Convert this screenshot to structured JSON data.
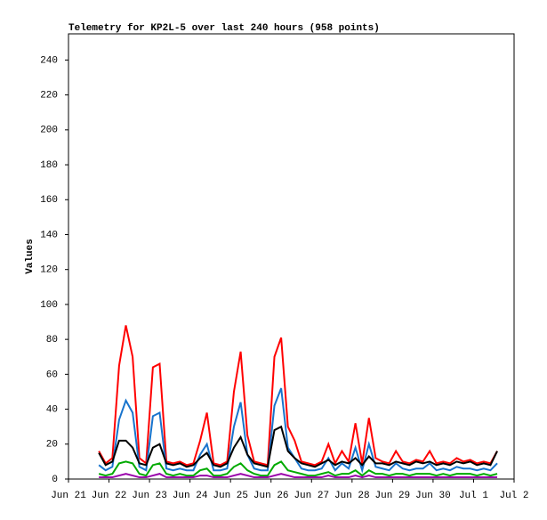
{
  "chart_data": {
    "type": "line",
    "title": "Telemetry for KP2L-5 over last 240 hours (958 points)",
    "ylabel": "Values",
    "x": [
      18,
      22,
      26,
      30,
      34,
      38,
      42,
      46,
      50,
      54,
      58,
      62,
      66,
      70,
      74,
      78,
      82,
      86,
      90,
      94,
      98,
      102,
      106,
      110,
      114,
      118,
      122,
      126,
      130,
      134,
      138,
      142,
      146,
      150,
      154,
      158,
      162,
      166,
      170,
      174,
      178,
      182,
      186,
      190,
      194,
      198,
      202,
      206,
      210,
      214,
      218,
      222,
      226,
      230,
      234,
      238,
      242,
      246,
      250,
      254
    ],
    "series": [
      {
        "color": "#ff0000",
        "values": [
          16,
          9,
          12,
          65,
          88,
          70,
          12,
          9,
          64,
          66,
          10,
          9,
          10,
          8,
          9,
          22,
          38,
          9,
          8,
          10,
          50,
          73,
          25,
          10,
          9,
          8,
          70,
          81,
          30,
          22,
          10,
          9,
          8,
          10,
          20,
          9,
          16,
          10,
          32,
          9,
          35,
          12,
          10,
          9,
          16,
          10,
          9,
          11,
          10,
          16,
          9,
          10,
          9,
          12,
          10,
          11,
          9,
          10,
          9,
          16
        ]
      },
      {
        "color": "#1874cd",
        "values": [
          8,
          5,
          7,
          34,
          45,
          38,
          7,
          5,
          36,
          38,
          6,
          5,
          6,
          5,
          5,
          14,
          20,
          5,
          5,
          6,
          30,
          44,
          14,
          6,
          5,
          5,
          42,
          52,
          18,
          12,
          6,
          5,
          5,
          6,
          12,
          5,
          9,
          6,
          18,
          5,
          20,
          7,
          6,
          5,
          9,
          6,
          5,
          6,
          6,
          9,
          5,
          6,
          5,
          7,
          6,
          6,
          5,
          6,
          5,
          9
        ]
      },
      {
        "color": "#00aa00",
        "values": [
          3,
          2,
          3,
          9,
          10,
          9,
          3,
          2,
          8,
          9,
          3,
          2,
          3,
          2,
          2,
          5,
          6,
          2,
          2,
          3,
          7,
          9,
          5,
          3,
          2,
          2,
          8,
          10,
          5,
          4,
          3,
          2,
          2,
          3,
          4,
          2,
          3,
          3,
          5,
          2,
          5,
          3,
          3,
          2,
          3,
          3,
          2,
          3,
          3,
          3,
          2,
          3,
          2,
          3,
          3,
          3,
          2,
          3,
          2,
          3
        ]
      },
      {
        "color": "#9900aa",
        "values": [
          1,
          1,
          1,
          2,
          3,
          2,
          1,
          1,
          2,
          3,
          1,
          1,
          1,
          1,
          1,
          2,
          2,
          1,
          1,
          1,
          2,
          3,
          2,
          1,
          1,
          1,
          2,
          3,
          2,
          1,
          1,
          1,
          1,
          1,
          2,
          1,
          1,
          1,
          2,
          1,
          2,
          1,
          1,
          1,
          1,
          1,
          1,
          1,
          1,
          1,
          1,
          1,
          1,
          1,
          1,
          1,
          1,
          1,
          1,
          1
        ]
      },
      {
        "color": "#000000",
        "values": [
          15,
          8,
          10,
          22,
          22,
          18,
          9,
          8,
          18,
          20,
          9,
          8,
          9,
          7,
          8,
          12,
          15,
          8,
          7,
          9,
          18,
          24,
          14,
          9,
          8,
          7,
          28,
          30,
          16,
          12,
          9,
          8,
          7,
          9,
          11,
          8,
          10,
          9,
          12,
          8,
          13,
          9,
          9,
          8,
          10,
          9,
          8,
          10,
          9,
          10,
          8,
          9,
          8,
          10,
          9,
          10,
          8,
          9,
          8,
          16
        ]
      }
    ],
    "xlim": [
      0,
      264
    ],
    "xticks": [
      {
        "value": 0,
        "label": "Jun 21"
      },
      {
        "value": 24,
        "label": "Jun 22"
      },
      {
        "value": 48,
        "label": "Jun 23"
      },
      {
        "value": 72,
        "label": "Jun 24"
      },
      {
        "value": 96,
        "label": "Jun 25"
      },
      {
        "value": 120,
        "label": "Jun 26"
      },
      {
        "value": 144,
        "label": "Jun 27"
      },
      {
        "value": 168,
        "label": "Jun 28"
      },
      {
        "value": 192,
        "label": "Jun 29"
      },
      {
        "value": 216,
        "label": "Jun 30"
      },
      {
        "value": 240,
        "label": "Jul 1"
      },
      {
        "value": 264,
        "label": "Jul 2"
      }
    ],
    "ylim": [
      0,
      255
    ],
    "yticks": [
      0,
      20,
      40,
      60,
      80,
      100,
      120,
      140,
      160,
      180,
      200,
      220,
      240
    ]
  }
}
